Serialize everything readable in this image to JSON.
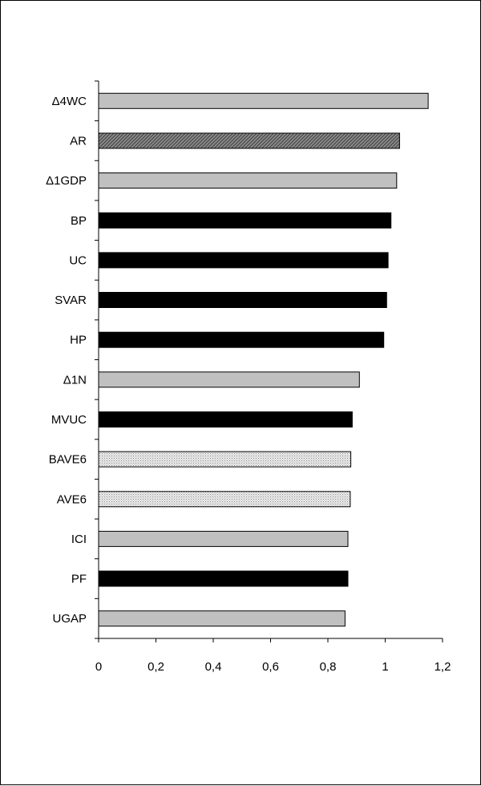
{
  "chart_data": {
    "type": "bar",
    "orientation": "horizontal",
    "title": "",
    "xlabel": "",
    "ylabel": "",
    "xlim": [
      0,
      1.2
    ],
    "x_ticks": [
      "0",
      "0,2",
      "0,4",
      "0,6",
      "0,8",
      "1",
      "1,2"
    ],
    "grid": false,
    "legend": "none",
    "categories": [
      "Δ4WC",
      "AR",
      "Δ1GDP",
      "BP",
      "UC",
      "SVAR",
      "HP",
      "Δ1N",
      "MVUC",
      "BAVE6",
      "AVE6",
      "ICI",
      "PF",
      "UGAP"
    ],
    "values": [
      1.15,
      1.05,
      1.04,
      1.02,
      1.01,
      1.005,
      0.995,
      0.91,
      0.885,
      0.88,
      0.878,
      0.87,
      0.87,
      0.86
    ],
    "bar_styles": [
      "gray",
      "hatched-dark",
      "gray",
      "black",
      "black",
      "black",
      "black",
      "gray",
      "black",
      "dotted-light",
      "dotted-light",
      "gray",
      "black",
      "gray"
    ],
    "colors": {
      "gray": "#c0c0c0",
      "black": "#000000",
      "hatched_dark": "#555555",
      "dotted_light": "#d8d8d8"
    }
  }
}
